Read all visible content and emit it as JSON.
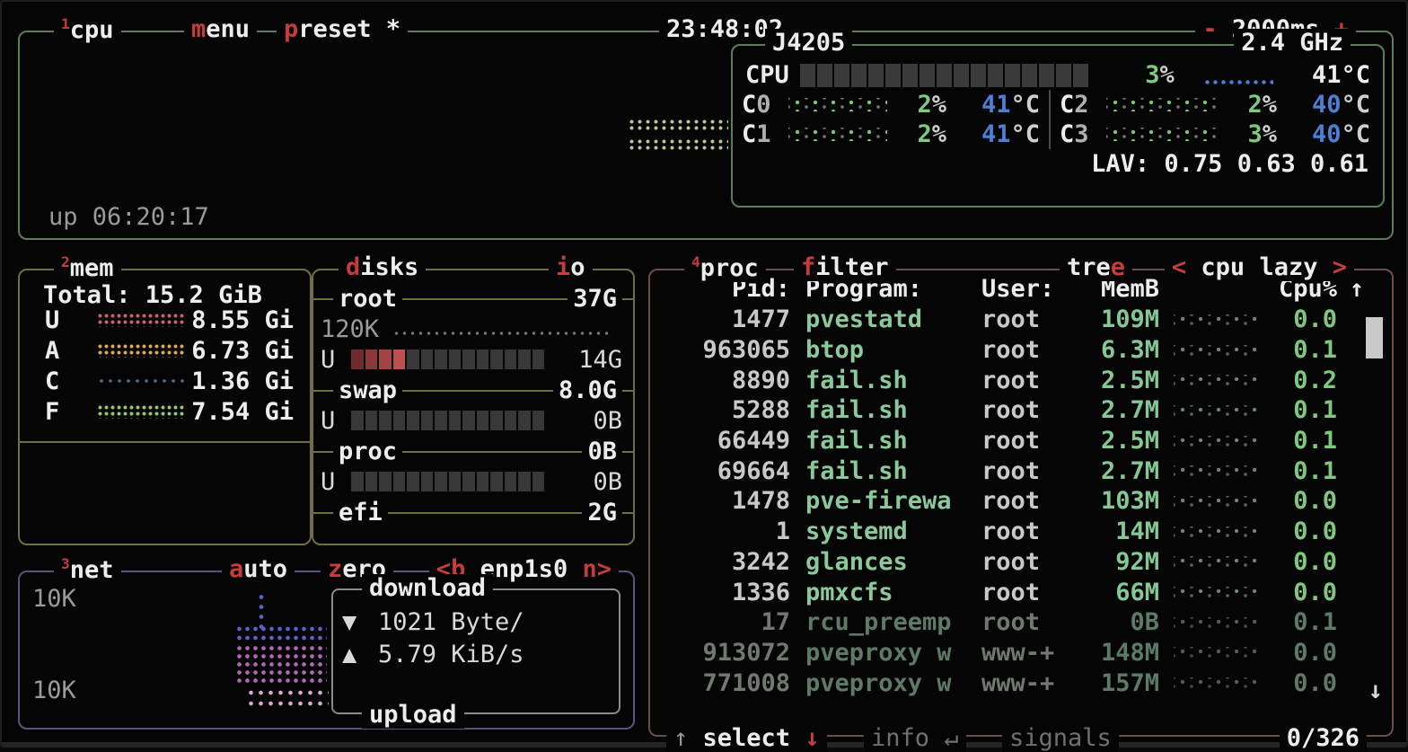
{
  "colors": {
    "accent_red": "#c43c3c",
    "cpu_border": "#5a7d5a",
    "mem_disk_border": "#6f6f3f",
    "net_border": "#55557f",
    "proc_border": "#714a4a",
    "value_green": "#7ec97e",
    "temp_blue": "#4d7fd6",
    "bar_fill_reds": [
      "#6e2c2c",
      "#8a3838",
      "#a34444",
      "#bb5050"
    ]
  },
  "header": {
    "panel_num": "1",
    "panel_title": "cpu",
    "menu_hotkey": "m",
    "menu_label": "enu",
    "preset_hotkey": "p",
    "preset_label": "reset *",
    "clock": "23:48:02",
    "interval_minus": "-",
    "interval_value": "2000ms",
    "interval_plus": "+"
  },
  "cpu": {
    "model": "J4205",
    "freq": "2.4 GHz",
    "uptime": "up 06:20:17",
    "total": {
      "label": "CPU",
      "pct": "3",
      "pct_unit": "%",
      "temp": "41°C",
      "bar_cells": 17
    },
    "cores": [
      {
        "name": "C",
        "num": "0",
        "pct": "2",
        "pct_unit": "%",
        "temp": "41",
        "unit": "°C"
      },
      {
        "name": "C",
        "num": "1",
        "pct": "2",
        "pct_unit": "%",
        "temp": "41",
        "unit": "°C"
      },
      {
        "name": "C",
        "num": "2",
        "pct": "2",
        "pct_unit": "%",
        "temp": "40",
        "unit": "°C"
      },
      {
        "name": "C",
        "num": "3",
        "pct": "3",
        "pct_unit": "%",
        "temp": "40",
        "unit": "°C"
      }
    ],
    "load_avg": "LAV: 0.75 0.63 0.61"
  },
  "mem": {
    "panel_num": "2",
    "panel_title": "mem",
    "total": "Total: 15.2 GiB",
    "rows": [
      {
        "label": "U",
        "value": "8.55 Gi",
        "color": "#d4606a",
        "sparse": false
      },
      {
        "label": "A",
        "value": "6.73 Gi",
        "color": "#ddaa55",
        "sparse": false
      },
      {
        "label": "C",
        "value": "1.36 Gi",
        "color": "#4a7090",
        "sparse": true
      },
      {
        "label": "F",
        "value": "7.54 Gi",
        "color": "#8fcc6f",
        "sparse": false
      }
    ]
  },
  "disks": {
    "hotkey": "d",
    "title": "isks",
    "io_hotkey": "i",
    "io_title": "o",
    "used_label": "U",
    "sections": [
      {
        "name": "root",
        "size": "37G",
        "io": "120K",
        "used": "14G",
        "cells": 14,
        "filled": 4
      },
      {
        "name": "swap",
        "size": "8.0G",
        "io": null,
        "used": "0B",
        "cells": 14,
        "filled": 0
      },
      {
        "name": "proc",
        "size": "0B",
        "io": null,
        "used": "0B",
        "cells": 14,
        "filled": 0
      },
      {
        "name": "efi",
        "size": "2G",
        "io": null,
        "used": null,
        "cells": 0,
        "filled": 0
      }
    ]
  },
  "net": {
    "panel_num": "3",
    "panel_title": "net",
    "auto_hotkey": "a",
    "auto_label": "uto",
    "zero_hotkey": "z",
    "zero_label": "ero",
    "iface_prev": "<b",
    "iface": "enp1s0",
    "iface_next": "n>",
    "scale_top": "10K",
    "scale_bottom": "10K",
    "download_label": "download",
    "down_icon": "▼",
    "down_value": "1021 Byte/",
    "up_icon": "▲",
    "up_value": "5.79 KiB/s",
    "upload_label": "upload"
  },
  "proc": {
    "panel_num": "4",
    "panel_title": "proc",
    "filter_hotkey": "f",
    "filter_label": "ilter",
    "tree_label": "tre",
    "tree_hotkey": "e",
    "sort_prev": "<",
    "sort_value": "cpu lazy",
    "sort_next": ">",
    "header": {
      "pid": "Pid:",
      "program": "Program:",
      "user": "User:",
      "mem": "MemB",
      "cpu": "Cpu%",
      "arrow": "↑"
    },
    "rows": [
      {
        "pid": "1477",
        "program": "pvestatd",
        "user": "root",
        "mem": "109M",
        "cpu": "0.0",
        "dim": false
      },
      {
        "pid": "963065",
        "program": "btop",
        "user": "root",
        "mem": "6.3M",
        "cpu": "0.1",
        "dim": false
      },
      {
        "pid": "8890",
        "program": "fail.sh",
        "user": "root",
        "mem": "2.5M",
        "cpu": "0.2",
        "dim": false
      },
      {
        "pid": "5288",
        "program": "fail.sh",
        "user": "root",
        "mem": "2.7M",
        "cpu": "0.1",
        "dim": false
      },
      {
        "pid": "66449",
        "program": "fail.sh",
        "user": "root",
        "mem": "2.5M",
        "cpu": "0.1",
        "dim": false
      },
      {
        "pid": "69664",
        "program": "fail.sh",
        "user": "root",
        "mem": "2.7M",
        "cpu": "0.1",
        "dim": false
      },
      {
        "pid": "1478",
        "program": "pve-firewa",
        "user": "root",
        "mem": "103M",
        "cpu": "0.0",
        "dim": false
      },
      {
        "pid": "1",
        "program": "systemd",
        "user": "root",
        "mem": "14M",
        "cpu": "0.0",
        "dim": false
      },
      {
        "pid": "3242",
        "program": "glances",
        "user": "root",
        "mem": "92M",
        "cpu": "0.0",
        "dim": false
      },
      {
        "pid": "1336",
        "program": "pmxcfs",
        "user": "root",
        "mem": "66M",
        "cpu": "0.0",
        "dim": false
      },
      {
        "pid": "17",
        "program": "rcu_preemp",
        "user": "root",
        "mem": "0B",
        "cpu": "0.1",
        "dim": true
      },
      {
        "pid": "913072",
        "program": "pveproxy w",
        "user": "www-+",
        "mem": "148M",
        "cpu": "0.0",
        "dim": true
      },
      {
        "pid": "771008",
        "program": "pveproxy w",
        "user": "www-+",
        "mem": "157M",
        "cpu": "0.0",
        "dim": true
      }
    ],
    "scroll_down": "↓",
    "footer": {
      "up": "↑",
      "select": "select",
      "down": "↓",
      "info": "info",
      "enter": "↵",
      "signals": "signals",
      "count": "0/326"
    }
  }
}
